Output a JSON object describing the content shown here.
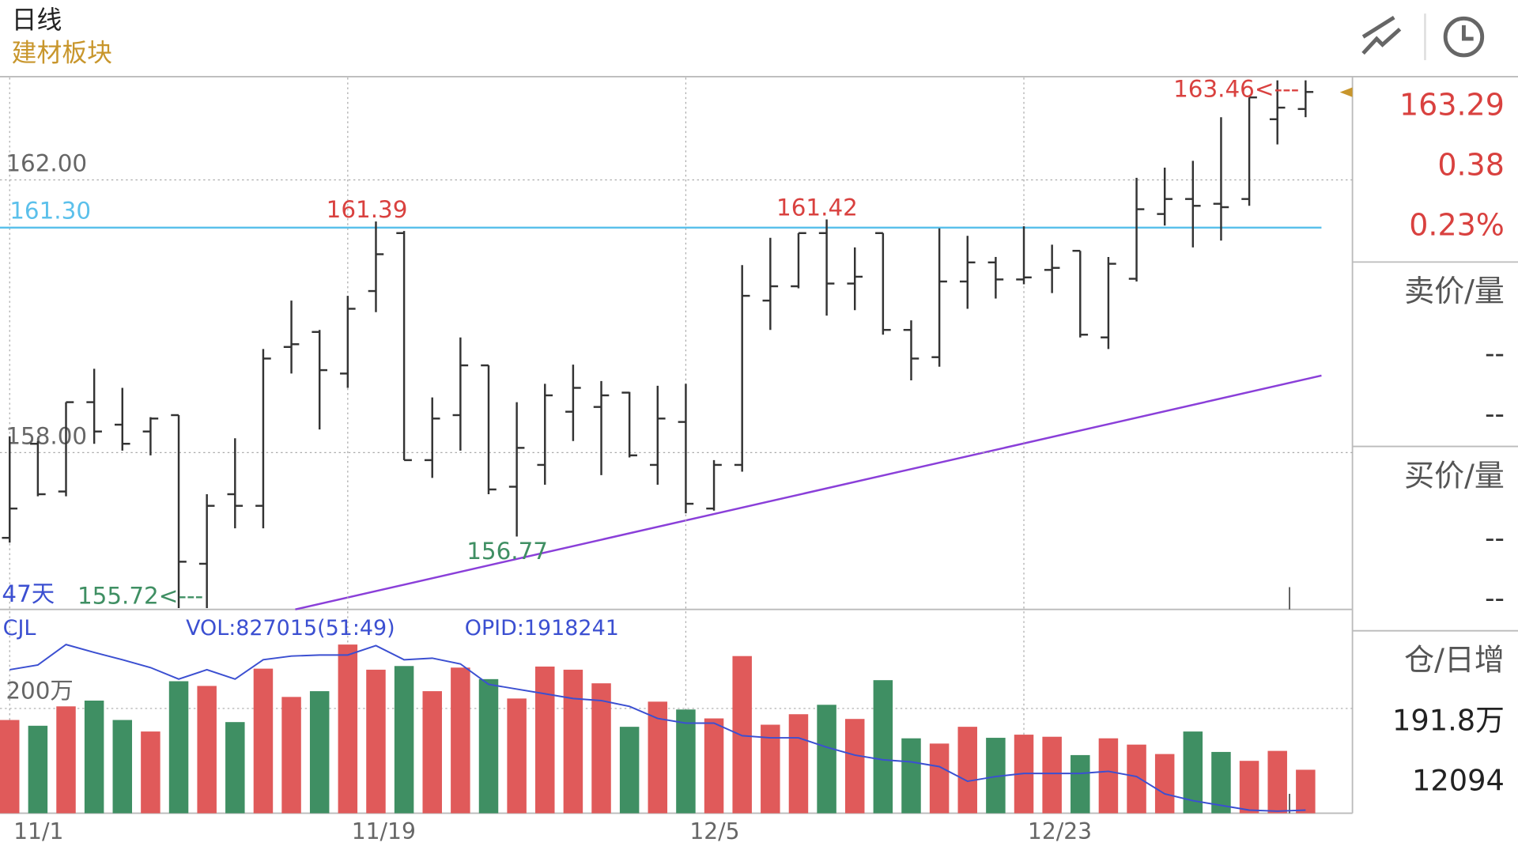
{
  "header": {
    "period": "日线",
    "sector": "建材板块"
  },
  "chart_data": {
    "type": "ohlc",
    "categories": [
      "11/1",
      null,
      null,
      null,
      null,
      null,
      null,
      null,
      null,
      null,
      null,
      null,
      "11/19",
      null,
      null,
      null,
      null,
      null,
      null,
      null,
      null,
      null,
      null,
      null,
      "12/5",
      null,
      null,
      null,
      null,
      null,
      null,
      null,
      null,
      null,
      null,
      null,
      "12/23",
      null,
      null,
      null,
      null,
      null,
      null,
      null,
      null,
      null,
      null
    ],
    "open": [
      156.75,
      158.13,
      157.43,
      158.74,
      158.41,
      158.31,
      158.55,
      156.37,
      157.39,
      157.22,
      159.55,
      159.77,
      159.16,
      160.37,
      161.22,
      157.89,
      158.55,
      159.28,
      157.5,
      157.82,
      158.6,
      158.67,
      158.88,
      157.82,
      158.45,
      157.18,
      157.82,
      160.23,
      160.44,
      161.22,
      160.48,
      161.22,
      159.8,
      159.4,
      160.51,
      160.79,
      160.54,
      160.68,
      160.96,
      159.69,
      160.55,
      161.5,
      161.72,
      161.65,
      161.72,
      162.89,
      163.04
    ],
    "high": [
      158.24,
      158.17,
      158.74,
      159.23,
      158.95,
      158.52,
      158.55,
      157.39,
      158.21,
      159.52,
      160.23,
      159.8,
      160.3,
      161.39,
      161.25,
      158.81,
      159.69,
      159.28,
      158.74,
      159.01,
      159.29,
      159.05,
      158.89,
      158.98,
      159.01,
      157.89,
      160.75,
      161.15,
      161.22,
      161.42,
      161.01,
      161.22,
      159.94,
      161.29,
      161.18,
      160.87,
      161.32,
      161.05,
      160.96,
      160.87,
      162.03,
      162.18,
      162.28,
      162.92,
      163.21,
      163.46,
      163.46
    ],
    "low": [
      156.68,
      157.36,
      157.36,
      158.13,
      158.03,
      157.96,
      155.72,
      155.72,
      156.89,
      156.89,
      159.16,
      158.34,
      158.95,
      160.06,
      157.89,
      157.63,
      158.03,
      157.39,
      156.77,
      157.53,
      158.17,
      157.67,
      157.93,
      157.53,
      157.11,
      157.15,
      157.72,
      159.8,
      160.41,
      160.01,
      160.09,
      159.73,
      159.06,
      159.26,
      160.11,
      160.26,
      160.47,
      160.34,
      159.69,
      159.52,
      160.51,
      161.33,
      161.01,
      161.11,
      161.62,
      162.52,
      162.92
    ],
    "close": [
      157.18,
      157.39,
      158.74,
      158.31,
      158.13,
      158.5,
      156.4,
      157.22,
      157.22,
      159.38,
      159.59,
      159.21,
      160.11,
      160.91,
      157.89,
      158.5,
      159.28,
      157.46,
      158.07,
      158.84,
      158.95,
      158.84,
      157.96,
      158.5,
      157.25,
      157.82,
      160.3,
      160.44,
      161.22,
      160.48,
      160.58,
      159.8,
      159.38,
      160.51,
      160.79,
      160.54,
      160.57,
      160.71,
      159.73,
      160.77,
      161.57,
      161.72,
      161.62,
      161.6,
      163.21,
      163.06,
      163.29
    ],
    "bar_color": "#333333",
    "up_color": "#e05a5a",
    "down_color": "#3f8f63",
    "ylim": [
      155.7,
      163.5
    ],
    "yticks": [
      {
        "value": 158,
        "label": "158.00"
      },
      {
        "value": 162,
        "label": "162.00"
      }
    ],
    "grid": true,
    "ref_line": {
      "value": 161.3,
      "label": "161.30",
      "color": "#5bc0eb"
    },
    "annotations": [
      "163.46<---",
      "161.39",
      "161.42",
      "156.77",
      "155.72<---",
      "47天"
    ],
    "volume": {
      "type": "bar",
      "title": "CJL",
      "indicators": [
        "VOL:827015(51:49)",
        "OPID:1918241"
      ],
      "values": [
        178,
        167,
        204,
        215,
        178,
        156,
        252,
        243,
        174,
        276,
        222,
        233,
        322,
        274,
        281,
        233,
        278,
        256,
        219,
        280,
        274,
        248,
        165,
        213,
        198,
        181,
        300,
        169,
        189,
        207,
        180,
        254,
        143,
        133,
        165,
        144,
        150,
        146,
        111,
        143,
        131,
        113,
        156,
        117,
        100,
        119,
        83
      ],
      "ma_values": [
        274,
        283,
        322,
        307,
        293,
        278,
        256,
        274,
        256,
        293,
        300,
        302,
        302,
        320,
        293,
        296,
        285,
        246,
        237,
        228,
        219,
        215,
        204,
        181,
        172,
        172,
        148,
        144,
        144,
        126,
        111,
        102,
        98,
        89,
        61,
        70,
        76,
        76,
        76,
        80,
        70,
        37,
        24,
        15,
        6,
        4,
        6
      ],
      "ma_color": "#3b4fd1",
      "ylim": [
        0,
        389
      ],
      "yticks": [
        {
          "value": 200,
          "label": "200万"
        }
      ]
    }
  },
  "quote_panel": {
    "last": 163.29,
    "change": 0.38,
    "change_pct": "0.23%",
    "ask_label": "卖价/量",
    "ask": [
      "--",
      "--"
    ],
    "bid_label": "买价/量",
    "bid": [
      "--",
      "--"
    ],
    "oi_label": "仓/日增",
    "open_interest": "191.8万",
    "daily_change": 12094
  }
}
